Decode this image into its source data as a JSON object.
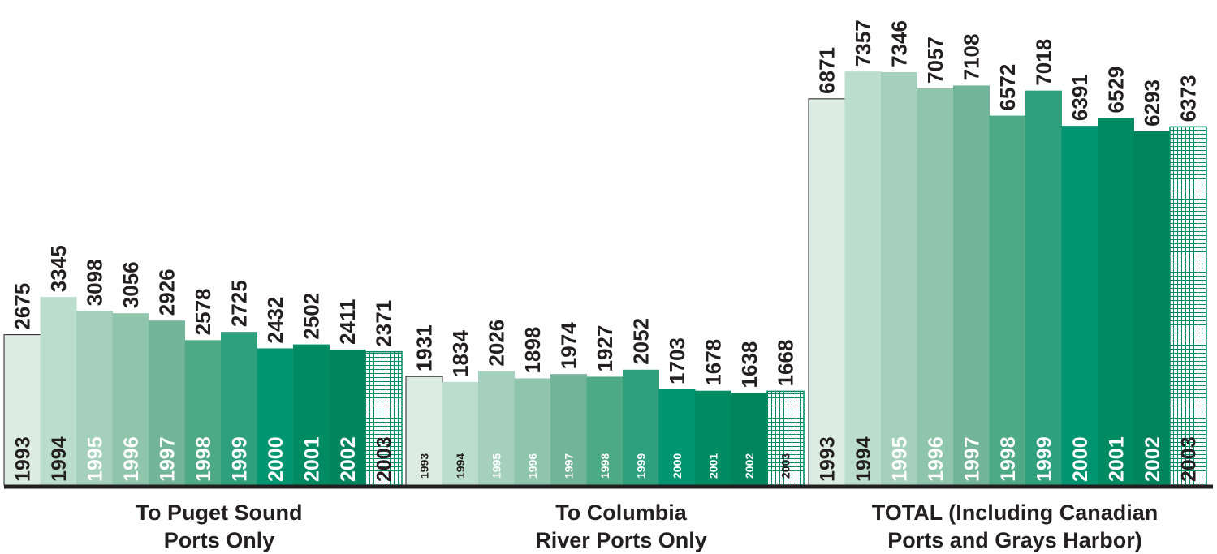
{
  "colors": {
    "shades": [
      "#dcece3",
      "#bbddcd",
      "#a5d0bd",
      "#8fc5ab",
      "#73b59a",
      "#4ea987",
      "#2ea07b",
      "#019572",
      "#008b63",
      "#00855d"
    ],
    "pattern_stroke": "#008b63",
    "outline": "#231f20",
    "axis": "#231f20",
    "dark_text": "#231f20",
    "light_text": "#ffffff"
  },
  "chart_data": [
    {
      "type": "bar",
      "title": "To Puget Sound Ports Only",
      "title_lines": [
        "To Puget Sound",
        "Ports Only"
      ],
      "categories": [
        "1993",
        "1994",
        "1995",
        "1996",
        "1997",
        "1998",
        "1999",
        "2000",
        "2001",
        "2002",
        "2003"
      ],
      "values": [
        2675,
        3345,
        3098,
        3056,
        2926,
        2578,
        2725,
        2432,
        2502,
        2411,
        2371
      ]
    },
    {
      "type": "bar",
      "title": "To Columbia River Ports Only",
      "title_lines": [
        "To Columbia",
        "River Ports Only"
      ],
      "categories": [
        "1993",
        "1994",
        "1995",
        "1996",
        "1997",
        "1998",
        "1999",
        "2000",
        "2001",
        "2002",
        "2003"
      ],
      "values": [
        1931,
        1834,
        2026,
        1898,
        1974,
        1927,
        2052,
        1703,
        1678,
        1638,
        1668
      ]
    },
    {
      "type": "bar",
      "title": "TOTAL (Including Canadian Ports and Grays Harbor)",
      "title_lines": [
        "TOTAL (Including Canadian",
        "Ports and Grays Harbor)"
      ],
      "categories": [
        "1993",
        "1994",
        "1995",
        "1996",
        "1997",
        "1998",
        "1999",
        "2000",
        "2001",
        "2002",
        "2003"
      ],
      "values": [
        6871,
        7357,
        7346,
        7057,
        7108,
        6572,
        7018,
        6391,
        6529,
        6293,
        6373
      ]
    }
  ]
}
